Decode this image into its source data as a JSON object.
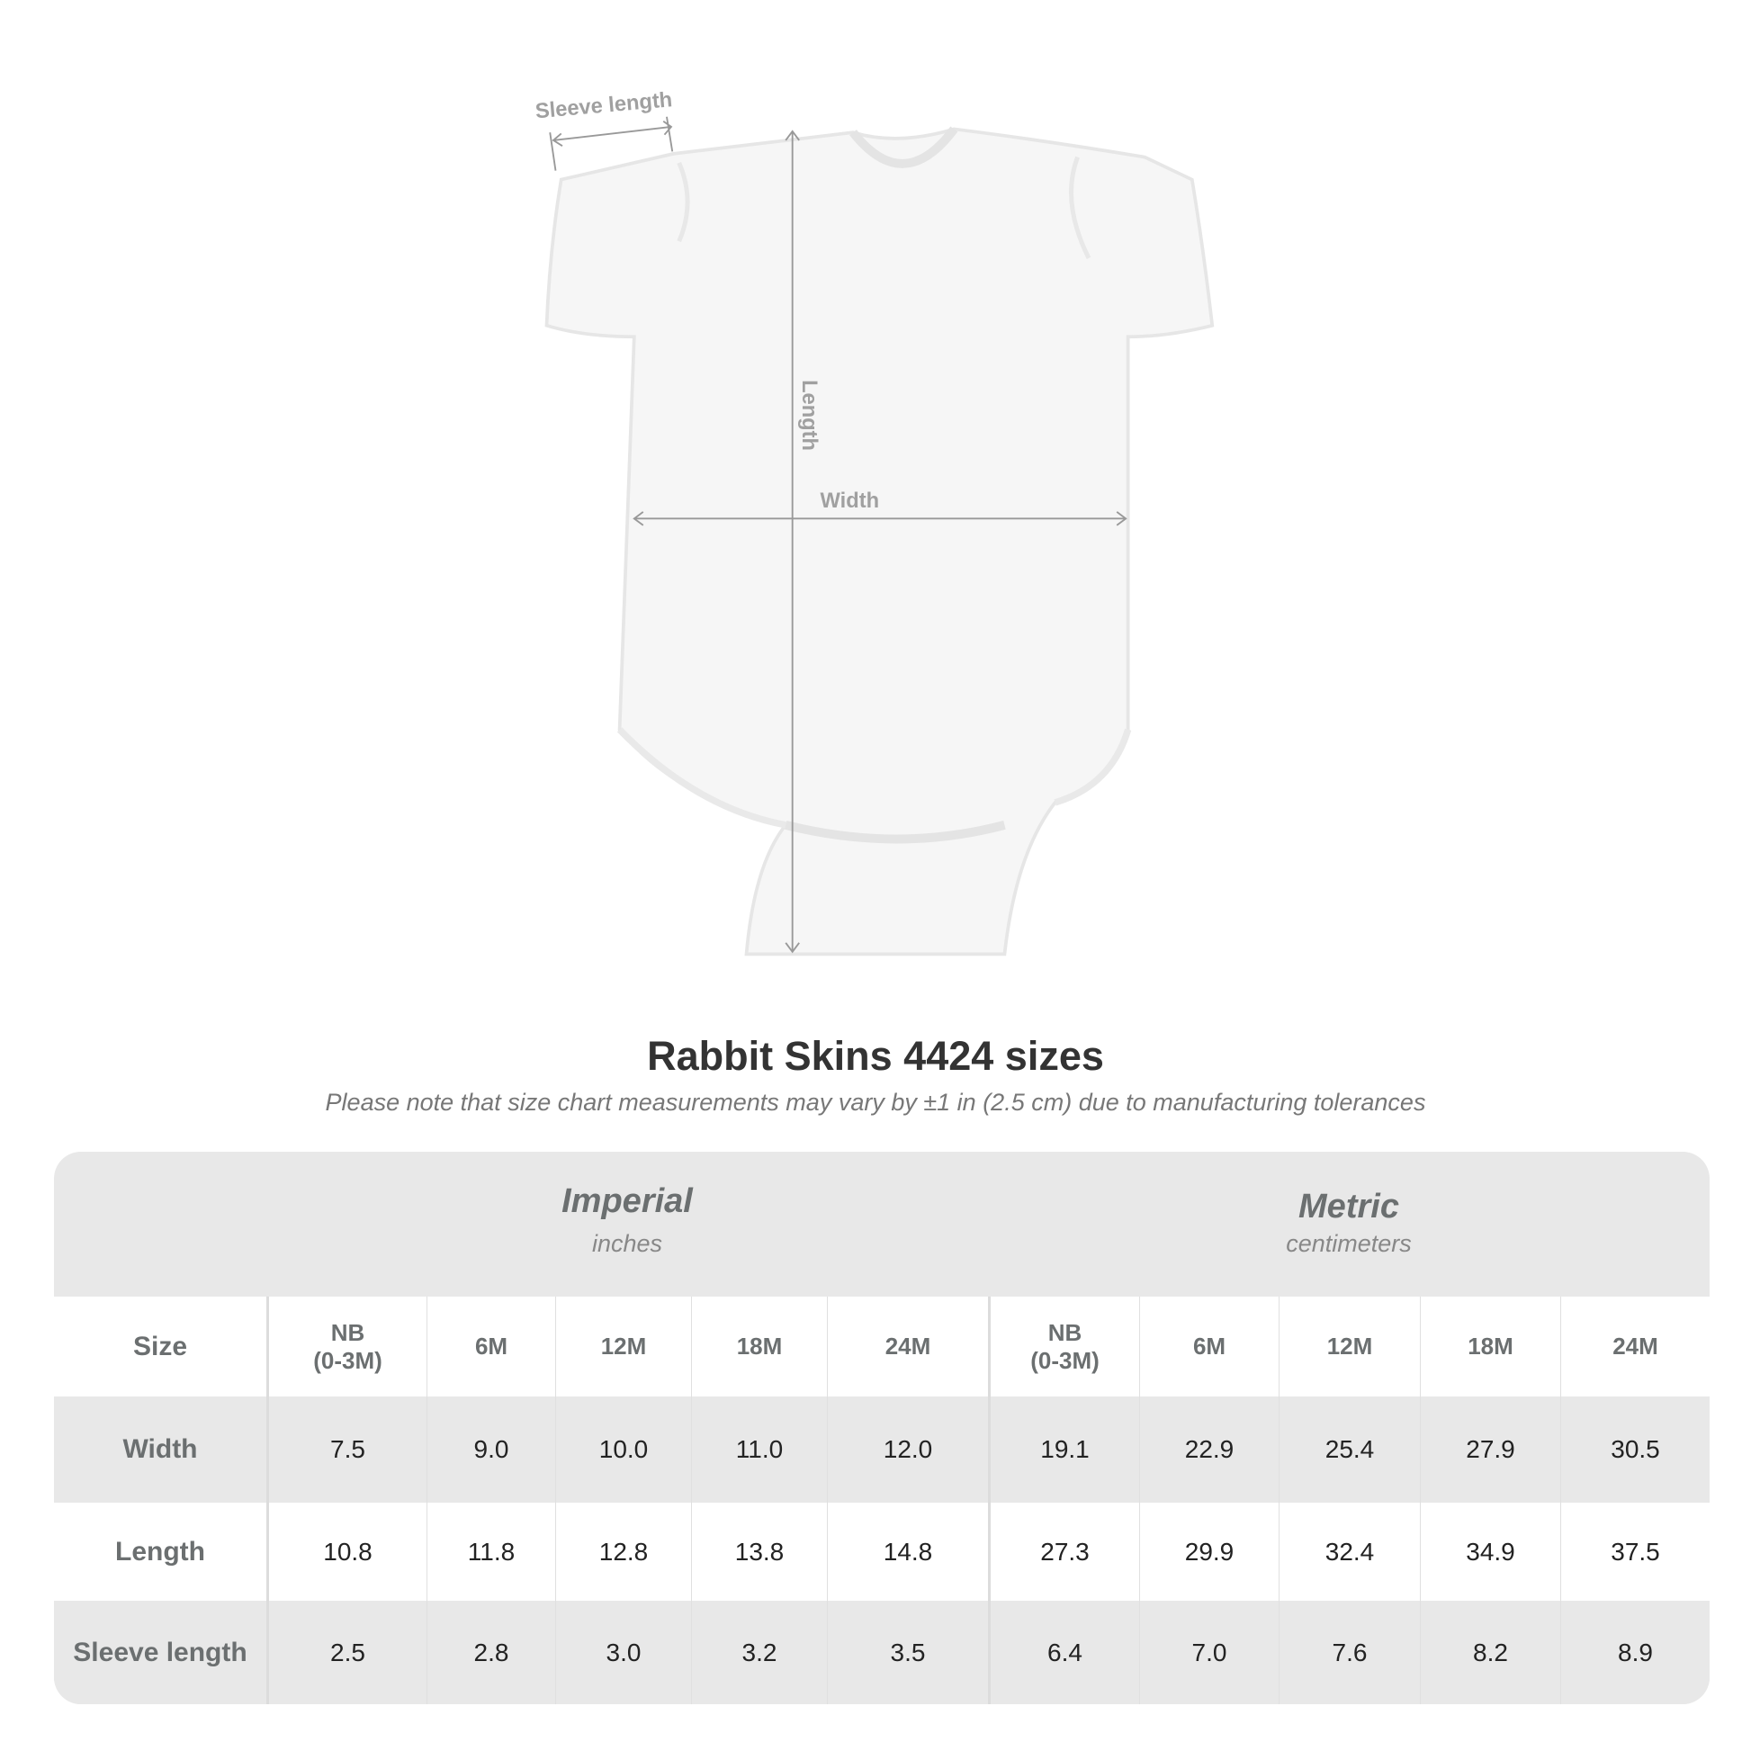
{
  "diagram": {
    "sleeve_label": "Sleeve length",
    "length_label": "Length",
    "width_label": "Width"
  },
  "title": "Rabbit Skins 4424 sizes",
  "subtitle": "Please note that size chart measurements may vary by ±1 in (2.5 cm) due to manufacturing tolerances",
  "table": {
    "groups": [
      {
        "name": "Imperial",
        "unit": "inches"
      },
      {
        "name": "Metric",
        "unit": "centimeters"
      }
    ],
    "size_label": "Size",
    "sizes": [
      "NB\n(0-3M)",
      "6M",
      "12M",
      "18M",
      "24M",
      "NB\n(0-3M)",
      "6M",
      "12M",
      "18M",
      "24M"
    ],
    "rows": [
      {
        "label": "Width",
        "values": [
          "7.5",
          "9.0",
          "10.0",
          "11.0",
          "12.0",
          "19.1",
          "22.9",
          "25.4",
          "27.9",
          "30.5"
        ]
      },
      {
        "label": "Length",
        "values": [
          "10.8",
          "11.8",
          "12.8",
          "13.8",
          "14.8",
          "27.3",
          "29.9",
          "32.4",
          "34.9",
          "37.5"
        ]
      },
      {
        "label": "Sleeve length",
        "values": [
          "2.5",
          "2.8",
          "3.0",
          "3.2",
          "3.5",
          "6.4",
          "7.0",
          "7.6",
          "8.2",
          "8.9"
        ]
      }
    ]
  },
  "colors": {
    "row_shade": "#e8e8e8",
    "label_text": "#6b6f70",
    "arrow": "#999999"
  }
}
